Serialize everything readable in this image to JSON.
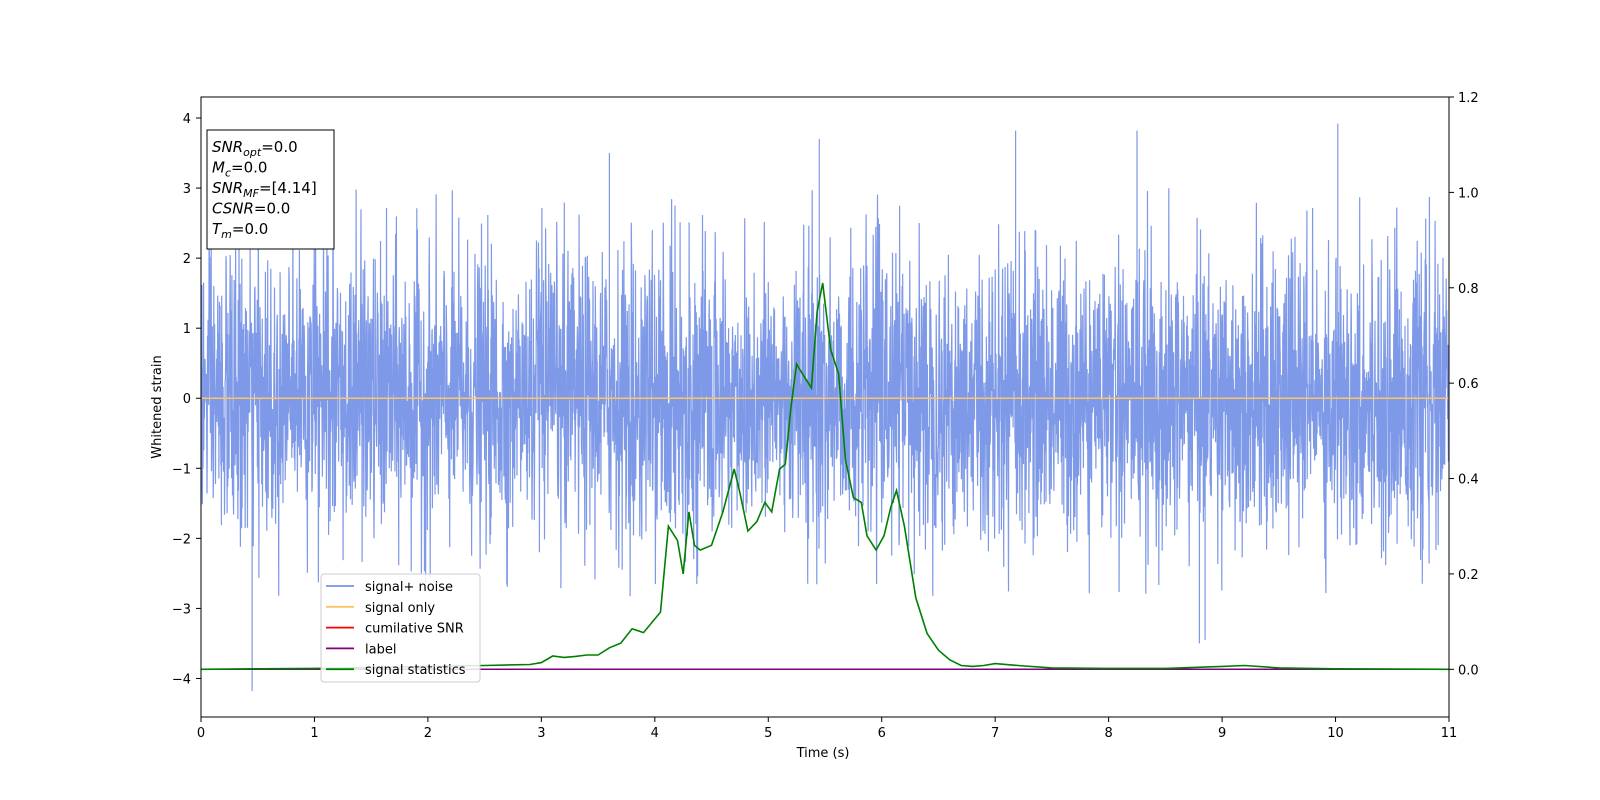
{
  "chart_data": {
    "type": "line",
    "xlabel": "Time (s)",
    "ylabel": "Whitened strain",
    "xlim": [
      0,
      11
    ],
    "ylim_left": [
      -4.55,
      4.3
    ],
    "ylim_right": [
      -0.1,
      1.2
    ],
    "x_ticks": [
      "0",
      "1",
      "2",
      "3",
      "4",
      "5",
      "6",
      "7",
      "8",
      "9",
      "10",
      "11"
    ],
    "y_ticks_left": [
      "4",
      "3",
      "2",
      "1",
      "0",
      "−1",
      "−2",
      "−3",
      "−4"
    ],
    "y_ticks_right": [
      "1.2",
      "1.0",
      "0.8",
      "0.6",
      "0.4",
      "0.2",
      "0.0"
    ],
    "legend_position": "lower-left",
    "annotation": [
      {
        "base": "SNR",
        "sub": "opt",
        "value": "=0.0"
      },
      {
        "base": "M",
        "sub": "c",
        "value": "=0.0"
      },
      {
        "base": "SNR",
        "sub": "MF",
        "value": "=[4.14]"
      },
      {
        "base": "CSNR",
        "sub": "",
        "value": "=0.0"
      },
      {
        "base": "T",
        "sub": "m",
        "value": "=0.0"
      }
    ],
    "series": [
      {
        "name": "signal+ noise",
        "axis": "left",
        "color": "#7793e6",
        "kind": "noise",
        "approx_range": [
          -4.2,
          3.9
        ],
        "spikes": [
          [
            0.45,
            -4.18
          ],
          [
            10.02,
            3.92
          ],
          [
            7.18,
            3.82
          ],
          [
            8.25,
            3.82
          ],
          [
            5.45,
            3.7
          ],
          [
            3.6,
            3.5
          ],
          [
            8.8,
            -3.5
          ],
          [
            8.85,
            -3.45
          ]
        ]
      },
      {
        "name": "signal only",
        "axis": "left",
        "color": "#ffc266",
        "x": [
          0,
          11
        ],
        "y": [
          0,
          0
        ]
      },
      {
        "name": "cumilative SNR",
        "axis": "right",
        "color": "#ff0000",
        "x": [],
        "y": []
      },
      {
        "name": "label",
        "axis": "right",
        "color": "#800080",
        "x": [
          0,
          11
        ],
        "y": [
          0,
          0
        ]
      },
      {
        "name": "signal statistics",
        "axis": "right",
        "color": "#008000",
        "x": [
          0,
          0.5,
          1.0,
          1.5,
          2.0,
          2.5,
          2.9,
          3.0,
          3.1,
          3.2,
          3.3,
          3.4,
          3.5,
          3.6,
          3.7,
          3.8,
          3.9,
          4.05,
          4.12,
          4.2,
          4.25,
          4.3,
          4.35,
          4.4,
          4.5,
          4.6,
          4.7,
          4.75,
          4.82,
          4.9,
          4.97,
          5.03,
          5.1,
          5.15,
          5.2,
          5.25,
          5.3,
          5.38,
          5.43,
          5.48,
          5.55,
          5.62,
          5.68,
          5.75,
          5.82,
          5.87,
          5.95,
          6.02,
          6.08,
          6.13,
          6.2,
          6.3,
          6.4,
          6.5,
          6.6,
          6.7,
          6.8,
          6.9,
          7.0,
          7.2,
          7.5,
          8.0,
          8.5,
          9.0,
          9.2,
          9.5,
          10.0,
          11.0
        ],
        "y": [
          0.0,
          0.001,
          0.002,
          0.004,
          0.006,
          0.008,
          0.01,
          0.014,
          0.028,
          0.025,
          0.027,
          0.03,
          0.03,
          0.045,
          0.055,
          0.085,
          0.077,
          0.12,
          0.3,
          0.27,
          0.2,
          0.33,
          0.26,
          0.25,
          0.26,
          0.33,
          0.42,
          0.37,
          0.29,
          0.31,
          0.35,
          0.33,
          0.42,
          0.43,
          0.55,
          0.64,
          0.62,
          0.59,
          0.75,
          0.81,
          0.67,
          0.62,
          0.44,
          0.36,
          0.35,
          0.28,
          0.25,
          0.28,
          0.34,
          0.375,
          0.3,
          0.15,
          0.075,
          0.04,
          0.02,
          0.008,
          0.006,
          0.008,
          0.012,
          0.008,
          0.003,
          0.002,
          0.002,
          0.006,
          0.008,
          0.003,
          0.001,
          0.0
        ]
      }
    ]
  }
}
